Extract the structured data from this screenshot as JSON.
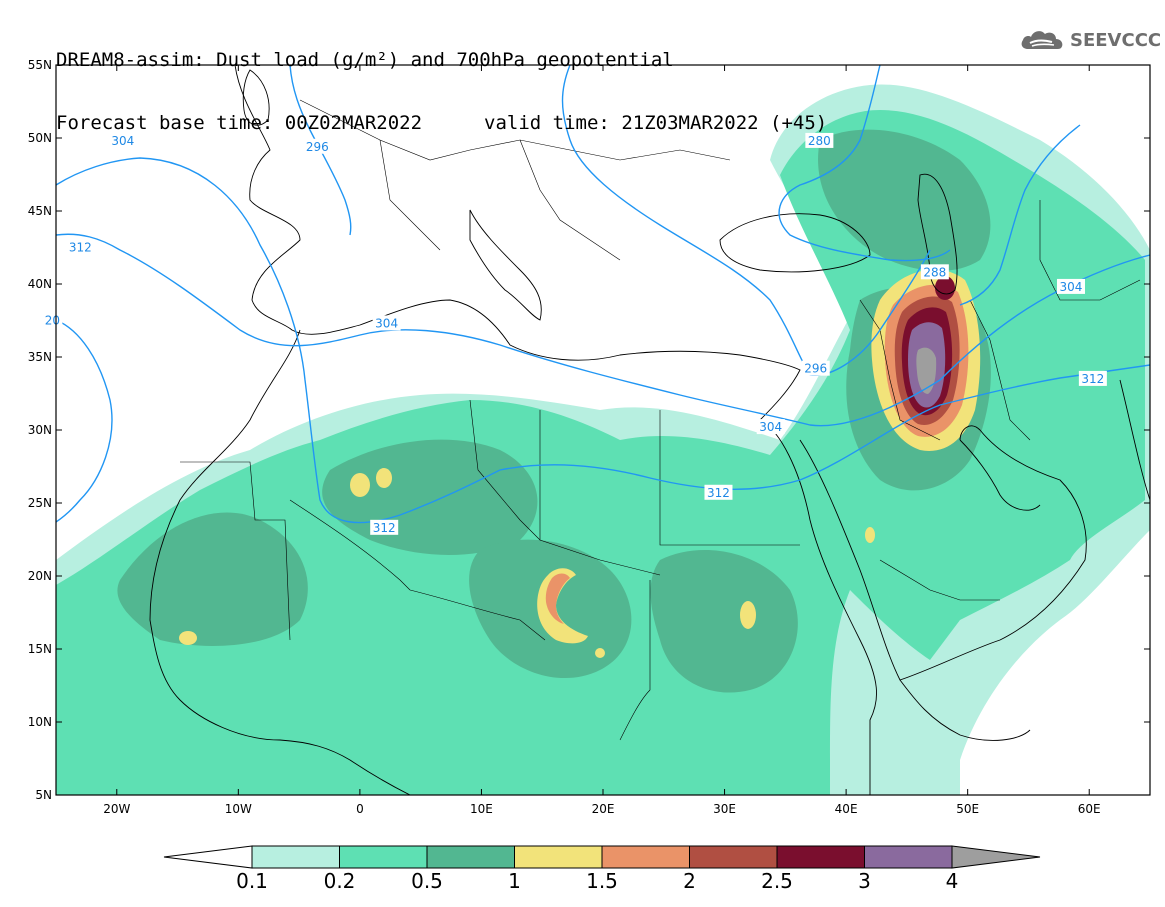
{
  "title": {
    "line1": "DREAM8-assim: Dust load (g/m²) and 700hPa geopotential",
    "line2_left": "Forecast base time: 00Z02MAR2022",
    "line2_right": "valid time: 21Z03MAR2022 (+45)"
  },
  "logo": {
    "text": "SEEVCCC",
    "icon": "cloud-logo-icon"
  },
  "map": {
    "lon_range": [
      -25,
      65
    ],
    "lat_range": [
      5,
      55
    ],
    "lat_ticks": [
      "55N",
      "50N",
      "45N",
      "40N",
      "35N",
      "30N",
      "25N",
      "20N",
      "15N",
      "10N",
      "5N"
    ],
    "lon_ticks": [
      "20W",
      "10W",
      "0",
      "10E",
      "20E",
      "30E",
      "40E",
      "50E",
      "60E"
    ],
    "contour_labels": [
      {
        "text": "304",
        "lon": -19.5,
        "lat": 49.8
      },
      {
        "text": "296",
        "lon": -3.5,
        "lat": 49.4
      },
      {
        "text": "280",
        "lon": 37.8,
        "lat": 49.8
      },
      {
        "text": "312",
        "lon": -23,
        "lat": 42.5
      },
      {
        "text": "288",
        "lon": 47.3,
        "lat": 40.8
      },
      {
        "text": "304",
        "lon": 58.5,
        "lat": 39.8
      },
      {
        "text": "20",
        "lon": -25.3,
        "lat": 37.5
      },
      {
        "text": "304",
        "lon": 2.2,
        "lat": 37.3
      },
      {
        "text": "296",
        "lon": 37.5,
        "lat": 34.2
      },
      {
        "text": "312",
        "lon": 60.3,
        "lat": 33.5
      },
      {
        "text": "304",
        "lon": 33.8,
        "lat": 30.2
      },
      {
        "text": "312",
        "lon": 29.5,
        "lat": 25.7
      },
      {
        "text": "312",
        "lon": 2.0,
        "lat": 23.3
      }
    ]
  },
  "colorbar": {
    "labels": [
      "0.1",
      "0.2",
      "0.5",
      "1",
      "1.5",
      "2",
      "2.5",
      "3",
      "4"
    ],
    "colors": [
      "#b7efe0",
      "#5ee0b3",
      "#52b791",
      "#f2e37a",
      "#ea9368",
      "#b04f42",
      "#7a0e2e",
      "#8a6a9e",
      "#9e9e9e"
    ]
  }
}
